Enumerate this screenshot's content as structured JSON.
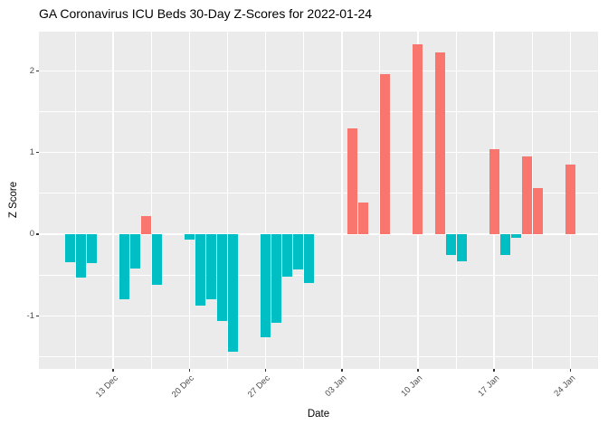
{
  "chart_data": {
    "type": "bar",
    "title": "GA Coronavirus ICU Beds 30-Day Z-Scores for 2022-01-24",
    "xlabel": "Date",
    "ylabel": "Z Score",
    "legend": "none",
    "grid": "white major and minor gridlines on gray panel",
    "ylim": [
      -1.65,
      2.48
    ],
    "y_ticks": [
      {
        "value": -1,
        "label": "-1"
      },
      {
        "value": 0,
        "label": "0"
      },
      {
        "value": 1,
        "label": "1"
      },
      {
        "value": 2,
        "label": "2"
      }
    ],
    "x_ticks": [
      {
        "date": "2021-12-13",
        "label": "13 Dec"
      },
      {
        "date": "2021-12-20",
        "label": "20 Dec"
      },
      {
        "date": "2021-12-27",
        "label": "27 Dec"
      },
      {
        "date": "2022-01-03",
        "label": "03 Jan"
      },
      {
        "date": "2022-01-10",
        "label": "10 Jan"
      },
      {
        "date": "2022-01-17",
        "label": "17 Jan"
      },
      {
        "date": "2022-01-24",
        "label": "24 Jan"
      }
    ],
    "colors": {
      "positive_bar": "#F8766D",
      "negative_bar": "#00BFC4",
      "panel_background": "#EBEBEB",
      "gridline": "#FFFFFF",
      "axis_text": "#4D4D4D",
      "title_text": "#000000"
    },
    "bars": [
      {
        "date": "2021-12-09",
        "value": -0.34
      },
      {
        "date": "2021-12-10",
        "value": -0.53
      },
      {
        "date": "2021-12-11",
        "value": -0.35
      },
      {
        "date": "2021-12-14",
        "value": -0.8
      },
      {
        "date": "2021-12-15",
        "value": -0.42
      },
      {
        "date": "2021-12-16",
        "value": 0.22
      },
      {
        "date": "2021-12-17",
        "value": -0.62
      },
      {
        "date": "2021-12-20",
        "value": -0.07
      },
      {
        "date": "2021-12-21",
        "value": -0.88
      },
      {
        "date": "2021-12-22",
        "value": -0.8
      },
      {
        "date": "2021-12-23",
        "value": -1.06
      },
      {
        "date": "2021-12-24",
        "value": -1.44
      },
      {
        "date": "2021-12-27",
        "value": -1.26
      },
      {
        "date": "2021-12-28",
        "value": -1.08
      },
      {
        "date": "2021-12-29",
        "value": -0.52
      },
      {
        "date": "2021-12-30",
        "value": -0.43
      },
      {
        "date": "2021-12-31",
        "value": -0.6
      },
      {
        "date": "2022-01-04",
        "value": 1.3
      },
      {
        "date": "2022-01-05",
        "value": 0.39
      },
      {
        "date": "2022-01-07",
        "value": 1.96
      },
      {
        "date": "2022-01-10",
        "value": 2.32
      },
      {
        "date": "2022-01-12",
        "value": 2.23
      },
      {
        "date": "2022-01-13",
        "value": -0.25
      },
      {
        "date": "2022-01-14",
        "value": -0.33
      },
      {
        "date": "2022-01-17",
        "value": 1.04
      },
      {
        "date": "2022-01-18",
        "value": -0.25
      },
      {
        "date": "2022-01-19",
        "value": -0.05
      },
      {
        "date": "2022-01-20",
        "value": 0.95
      },
      {
        "date": "2022-01-21",
        "value": 0.57
      },
      {
        "date": "2022-01-24",
        "value": 0.85
      }
    ]
  }
}
